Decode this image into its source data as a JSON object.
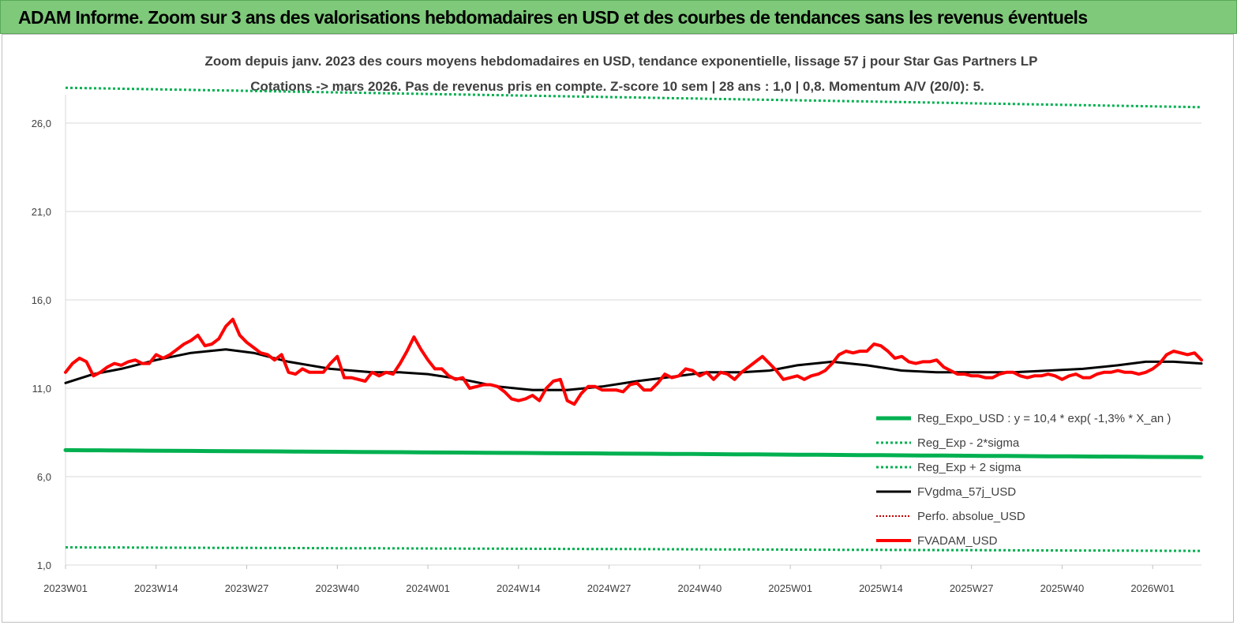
{
  "banner": {
    "title": "ADAM Informe. Zoom sur 3 ans des valorisations hebdomadaires en USD et des courbes de tendances sans les revenus éventuels",
    "background": "#7ec97a"
  },
  "chart_data": {
    "type": "line",
    "title": "Zoom depuis janv. 2023 des cours moyens hebdomadaires en USD, tendance exponentielle, lissage 57 j pour Star Gas Partners LP",
    "subtitle": "Cotations -> mars 2026. Pas de revenus pris en compte. Z-score 10 sem | 28 ans : 1,0 | 0,8. Momentum A/V (20/0): 5.",
    "xlabel": "",
    "ylabel": "",
    "ylim": [
      1,
      28.5
    ],
    "grid": "horizontal",
    "legend_position": "lower-right",
    "x_tick_labels": [
      "2023W01",
      "2023W14",
      "2023W27",
      "2023W40",
      "2024W01",
      "2024W14",
      "2024W27",
      "2024W40",
      "2025W01",
      "2025W14",
      "2025W27",
      "2025W40",
      "2026W01"
    ],
    "y_ticks": [
      1,
      6,
      11,
      16,
      21,
      26
    ],
    "y_tick_labels": [
      "1,0",
      "6,0",
      "11,0",
      "16,0",
      "21,0",
      "26,0"
    ],
    "weeks": 164,
    "series": [
      {
        "name": "Reg_Expo_USD : y = 10,4 * exp( -1,3% *  X_an )",
        "color": "#00b050",
        "style": "solid",
        "width": 5,
        "start": 7.5,
        "end": 7.1
      },
      {
        "name": "Reg_Exp - 2*sigma",
        "color": "#00b050",
        "style": "dotted",
        "width": 3,
        "start": 2.0,
        "end": 1.8
      },
      {
        "name": "Reg_Exp + 2 sigma",
        "color": "#00b050",
        "style": "dotted",
        "width": 3,
        "start": 28.0,
        "end": 26.9
      },
      {
        "name": "FVgdma_57j_USD",
        "color": "#000000",
        "style": "solid",
        "width": 3,
        "points": [
          [
            0,
            11.3
          ],
          [
            4,
            11.8
          ],
          [
            8,
            12.1
          ],
          [
            13,
            12.6
          ],
          [
            18,
            13.0
          ],
          [
            23,
            13.2
          ],
          [
            27,
            13.0
          ],
          [
            32,
            12.5
          ],
          [
            38,
            12.1
          ],
          [
            44,
            11.9
          ],
          [
            48,
            11.9
          ],
          [
            52,
            11.8
          ],
          [
            57,
            11.5
          ],
          [
            62,
            11.1
          ],
          [
            67,
            10.9
          ],
          [
            72,
            10.9
          ],
          [
            77,
            11.1
          ],
          [
            82,
            11.4
          ],
          [
            86,
            11.6
          ],
          [
            92,
            11.9
          ],
          [
            97,
            11.9
          ],
          [
            101,
            12.0
          ],
          [
            105,
            12.3
          ],
          [
            110,
            12.5
          ],
          [
            115,
            12.3
          ],
          [
            120,
            12.0
          ],
          [
            125,
            11.9
          ],
          [
            130,
            11.9
          ],
          [
            136,
            11.9
          ],
          [
            141,
            12.0
          ],
          [
            146,
            12.1
          ],
          [
            151,
            12.3
          ],
          [
            155,
            12.5
          ],
          [
            159,
            12.5
          ],
          [
            163,
            12.4
          ]
        ]
      },
      {
        "name": "Perfo. absolue_USD",
        "color": "#c00000",
        "style": "dotted",
        "width": 2,
        "points": []
      },
      {
        "name": "FVADAM_USD",
        "color": "#ff0000",
        "style": "solid",
        "width": 4,
        "points": [
          [
            0,
            11.9
          ],
          [
            1,
            12.4
          ],
          [
            2,
            12.7
          ],
          [
            3,
            12.5
          ],
          [
            4,
            11.7
          ],
          [
            5,
            11.9
          ],
          [
            6,
            12.2
          ],
          [
            7,
            12.4
          ],
          [
            8,
            12.3
          ],
          [
            9,
            12.5
          ],
          [
            10,
            12.6
          ],
          [
            11,
            12.4
          ],
          [
            12,
            12.4
          ],
          [
            13,
            12.9
          ],
          [
            14,
            12.7
          ],
          [
            15,
            12.9
          ],
          [
            16,
            13.2
          ],
          [
            17,
            13.5
          ],
          [
            18,
            13.7
          ],
          [
            19,
            14.0
          ],
          [
            20,
            13.4
          ],
          [
            21,
            13.5
          ],
          [
            22,
            13.8
          ],
          [
            23,
            14.5
          ],
          [
            24,
            14.9
          ],
          [
            25,
            14.0
          ],
          [
            26,
            13.6
          ],
          [
            27,
            13.3
          ],
          [
            28,
            13.0
          ],
          [
            29,
            12.9
          ],
          [
            30,
            12.6
          ],
          [
            31,
            12.9
          ],
          [
            32,
            11.9
          ],
          [
            33,
            11.8
          ],
          [
            34,
            12.1
          ],
          [
            35,
            11.9
          ],
          [
            36,
            11.9
          ],
          [
            37,
            11.9
          ],
          [
            38,
            12.4
          ],
          [
            39,
            12.8
          ],
          [
            40,
            11.6
          ],
          [
            41,
            11.6
          ],
          [
            42,
            11.5
          ],
          [
            43,
            11.4
          ],
          [
            44,
            11.9
          ],
          [
            45,
            11.7
          ],
          [
            46,
            11.9
          ],
          [
            47,
            11.8
          ],
          [
            48,
            12.4
          ],
          [
            49,
            13.1
          ],
          [
            50,
            13.9
          ],
          [
            51,
            13.2
          ],
          [
            52,
            12.6
          ],
          [
            53,
            12.1
          ],
          [
            54,
            12.1
          ],
          [
            55,
            11.7
          ],
          [
            56,
            11.5
          ],
          [
            57,
            11.6
          ],
          [
            58,
            11.0
          ],
          [
            59,
            11.1
          ],
          [
            60,
            11.2
          ],
          [
            61,
            11.2
          ],
          [
            62,
            11.1
          ],
          [
            63,
            10.8
          ],
          [
            64,
            10.4
          ],
          [
            65,
            10.3
          ],
          [
            66,
            10.4
          ],
          [
            67,
            10.6
          ],
          [
            68,
            10.3
          ],
          [
            69,
            11.0
          ],
          [
            70,
            11.4
          ],
          [
            71,
            11.5
          ],
          [
            72,
            10.3
          ],
          [
            73,
            10.1
          ],
          [
            74,
            10.7
          ],
          [
            75,
            11.1
          ],
          [
            76,
            11.1
          ],
          [
            77,
            10.9
          ],
          [
            78,
            10.9
          ],
          [
            79,
            10.9
          ],
          [
            80,
            10.8
          ],
          [
            81,
            11.2
          ],
          [
            82,
            11.3
          ],
          [
            83,
            10.9
          ],
          [
            84,
            10.9
          ],
          [
            85,
            11.3
          ],
          [
            86,
            11.8
          ],
          [
            87,
            11.6
          ],
          [
            88,
            11.7
          ],
          [
            89,
            12.1
          ],
          [
            90,
            12.0
          ],
          [
            91,
            11.7
          ],
          [
            92,
            11.9
          ],
          [
            93,
            11.5
          ],
          [
            94,
            11.9
          ],
          [
            95,
            11.8
          ],
          [
            96,
            11.5
          ],
          [
            97,
            11.9
          ],
          [
            98,
            12.2
          ],
          [
            99,
            12.5
          ],
          [
            100,
            12.8
          ],
          [
            101,
            12.4
          ],
          [
            102,
            12.0
          ],
          [
            103,
            11.5
          ],
          [
            104,
            11.6
          ],
          [
            105,
            11.7
          ],
          [
            106,
            11.5
          ],
          [
            107,
            11.7
          ],
          [
            108,
            11.8
          ],
          [
            109,
            12.0
          ],
          [
            110,
            12.4
          ],
          [
            111,
            12.9
          ],
          [
            112,
            13.1
          ],
          [
            113,
            13.0
          ],
          [
            114,
            13.1
          ],
          [
            115,
            13.1
          ],
          [
            116,
            13.5
          ],
          [
            117,
            13.4
          ],
          [
            118,
            13.1
          ],
          [
            119,
            12.7
          ],
          [
            120,
            12.8
          ],
          [
            121,
            12.5
          ],
          [
            122,
            12.4
          ],
          [
            123,
            12.5
          ],
          [
            124,
            12.5
          ],
          [
            125,
            12.6
          ],
          [
            126,
            12.2
          ],
          [
            127,
            12.0
          ],
          [
            128,
            11.8
          ],
          [
            129,
            11.8
          ],
          [
            130,
            11.7
          ],
          [
            131,
            11.7
          ],
          [
            132,
            11.6
          ],
          [
            133,
            11.6
          ],
          [
            134,
            11.8
          ],
          [
            135,
            11.9
          ],
          [
            136,
            11.9
          ],
          [
            137,
            11.7
          ],
          [
            138,
            11.6
          ],
          [
            139,
            11.7
          ],
          [
            140,
            11.7
          ],
          [
            141,
            11.8
          ],
          [
            142,
            11.7
          ],
          [
            143,
            11.5
          ],
          [
            144,
            11.7
          ],
          [
            145,
            11.8
          ],
          [
            146,
            11.6
          ],
          [
            147,
            11.6
          ],
          [
            148,
            11.8
          ],
          [
            149,
            11.9
          ],
          [
            150,
            11.9
          ],
          [
            151,
            12.0
          ],
          [
            152,
            11.9
          ],
          [
            153,
            11.9
          ],
          [
            154,
            11.8
          ],
          [
            155,
            11.9
          ],
          [
            156,
            12.1
          ],
          [
            157,
            12.4
          ],
          [
            158,
            12.9
          ],
          [
            159,
            13.1
          ],
          [
            160,
            13.0
          ],
          [
            161,
            12.9
          ],
          [
            162,
            13.0
          ],
          [
            163,
            12.6
          ]
        ]
      }
    ]
  }
}
